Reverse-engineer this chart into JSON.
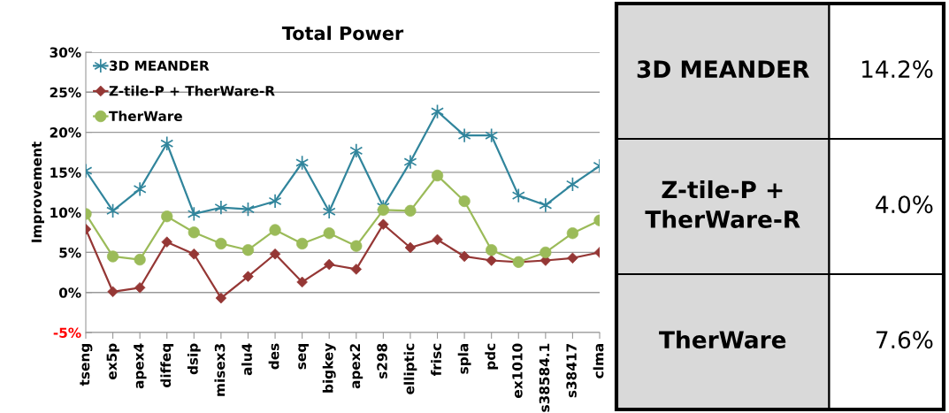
{
  "chart_data": [
    {
      "type": "line",
      "title": "Total Power",
      "ylabel": "Improvement",
      "categories": [
        "tseng",
        "ex5p",
        "apex4",
        "diffeq",
        "dsip",
        "misex3",
        "alu4",
        "des",
        "seq",
        "bigkey",
        "apex2",
        "s298",
        "elliptic",
        "frisc",
        "spla",
        "pdc",
        "ex1010",
        "s38584.1",
        "s38417",
        "clma"
      ],
      "series": [
        {
          "name": "3D MEANDER",
          "color": "#31859c",
          "marker": "cross",
          "values": [
            15.2,
            10.2,
            12.9,
            18.6,
            9.8,
            10.6,
            10.4,
            11.4,
            16.2,
            10.1,
            17.7,
            10.7,
            16.3,
            22.6,
            19.6,
            19.6,
            12.1,
            10.9,
            13.5,
            15.8
          ]
        },
        {
          "name": "Z-tile-P + TherWare-R",
          "color": "#953735",
          "marker": "diamond",
          "values": [
            7.9,
            0.1,
            0.6,
            6.3,
            4.8,
            -0.7,
            2.0,
            4.8,
            1.3,
            3.5,
            2.9,
            8.5,
            5.6,
            6.6,
            4.5,
            4.0,
            3.8,
            4.0,
            4.3,
            5.0
          ]
        },
        {
          "name": "TherWare",
          "color": "#9bbb59",
          "marker": "circle",
          "values": [
            9.8,
            4.5,
            4.1,
            9.5,
            7.5,
            6.1,
            5.3,
            7.8,
            6.1,
            7.4,
            5.8,
            10.3,
            10.2,
            14.6,
            11.4,
            5.3,
            3.8,
            5.0,
            7.4,
            9.0
          ]
        }
      ],
      "ylim": [
        -5,
        30
      ],
      "yticks": [
        {
          "value": -5,
          "label": "-5%"
        },
        {
          "value": 0,
          "label": "0%"
        },
        {
          "value": 5,
          "label": "5%"
        },
        {
          "value": 10,
          "label": "10%"
        },
        {
          "value": 15,
          "label": "15%"
        },
        {
          "value": 20,
          "label": "20%"
        },
        {
          "value": 25,
          "label": "25%"
        },
        {
          "value": 30,
          "label": "30%"
        }
      ],
      "grid": "y",
      "legend": "top left"
    },
    {
      "type": "other",
      "categories": [
        "3D MEANDER",
        "Z-tile-P + TherWare-R",
        "TherWare"
      ],
      "value_labels": [
        "14.2%",
        "4.0%",
        "7.6%"
      ],
      "colors": [
        "#d9d9d9",
        "#d9d9d9",
        "#d9d9d9"
      ]
    }
  ]
}
